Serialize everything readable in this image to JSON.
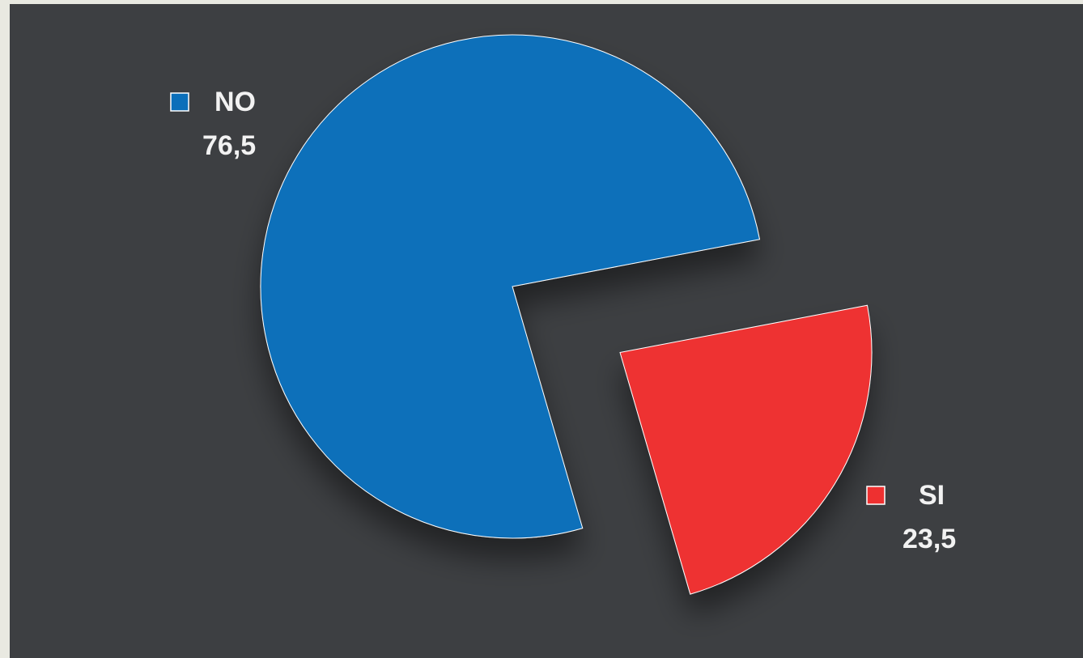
{
  "chart_data": {
    "type": "pie",
    "categories": [
      "NO",
      "SI"
    ],
    "values": [
      76.5,
      23.5
    ],
    "value_labels": [
      "76,5",
      "23,5"
    ],
    "colors": [
      "#0b6fba",
      "#ee3030"
    ]
  }
}
